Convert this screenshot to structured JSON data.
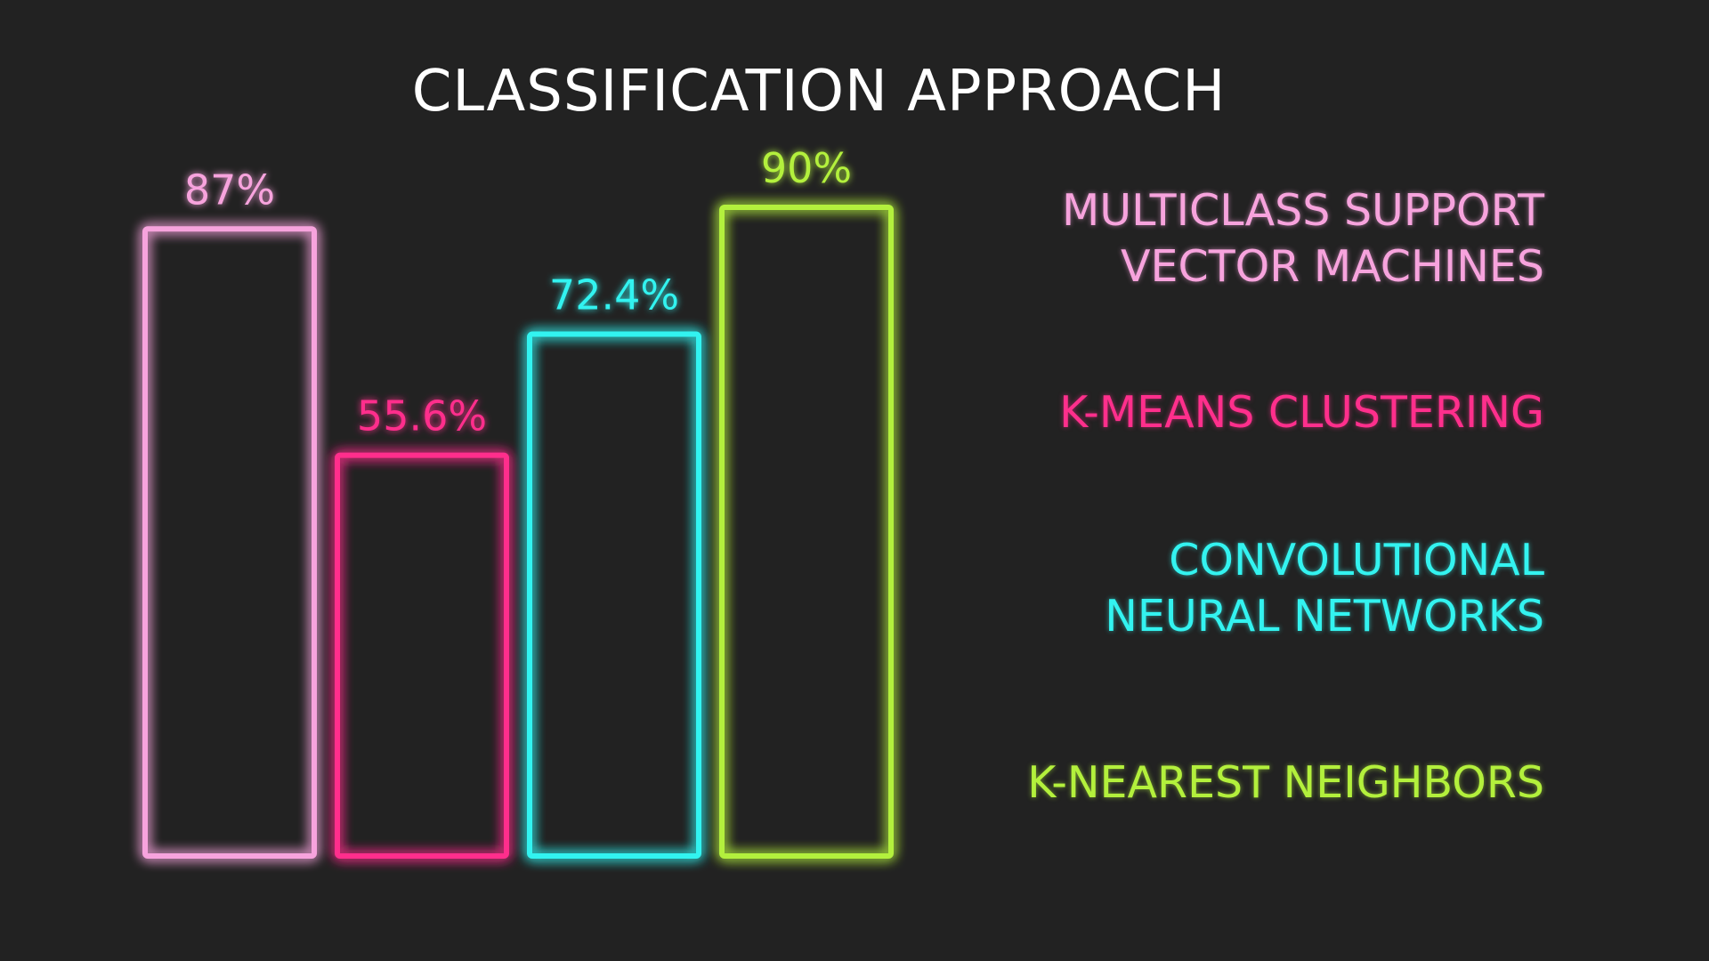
{
  "chart_data": {
    "type": "bar",
    "title": "CLASSIFICATION APPROACH",
    "categories": [
      "MULTICLASS SUPPORT VECTOR MACHINES",
      "K-MEANS CLUSTERING",
      "CONVOLUTIONAL NEURAL NETWORKS",
      "K-NEAREST NEIGHBORS"
    ],
    "values": [
      87,
      55.6,
      72.4,
      90
    ],
    "value_labels": [
      "87%",
      "55.6%",
      "72.4%",
      "90%"
    ],
    "colors": [
      "#f7a3dd",
      "#ff2f8c",
      "#33f3f0",
      "#b3f03c"
    ],
    "legend": [
      {
        "lines": [
          "MULTICLASS SUPPORT",
          "VECTOR MACHINES"
        ]
      },
      {
        "lines": [
          "K-MEANS CLUSTERING"
        ]
      },
      {
        "lines": [
          "CONVOLUTIONAL",
          "NEURAL NETWORKS"
        ]
      },
      {
        "lines": [
          "K-NEAREST NEIGHBORS"
        ]
      }
    ],
    "legend_placement": "right",
    "ylim": [
      0,
      100
    ],
    "grid": false,
    "style": "neon outlined bars on dark background"
  }
}
